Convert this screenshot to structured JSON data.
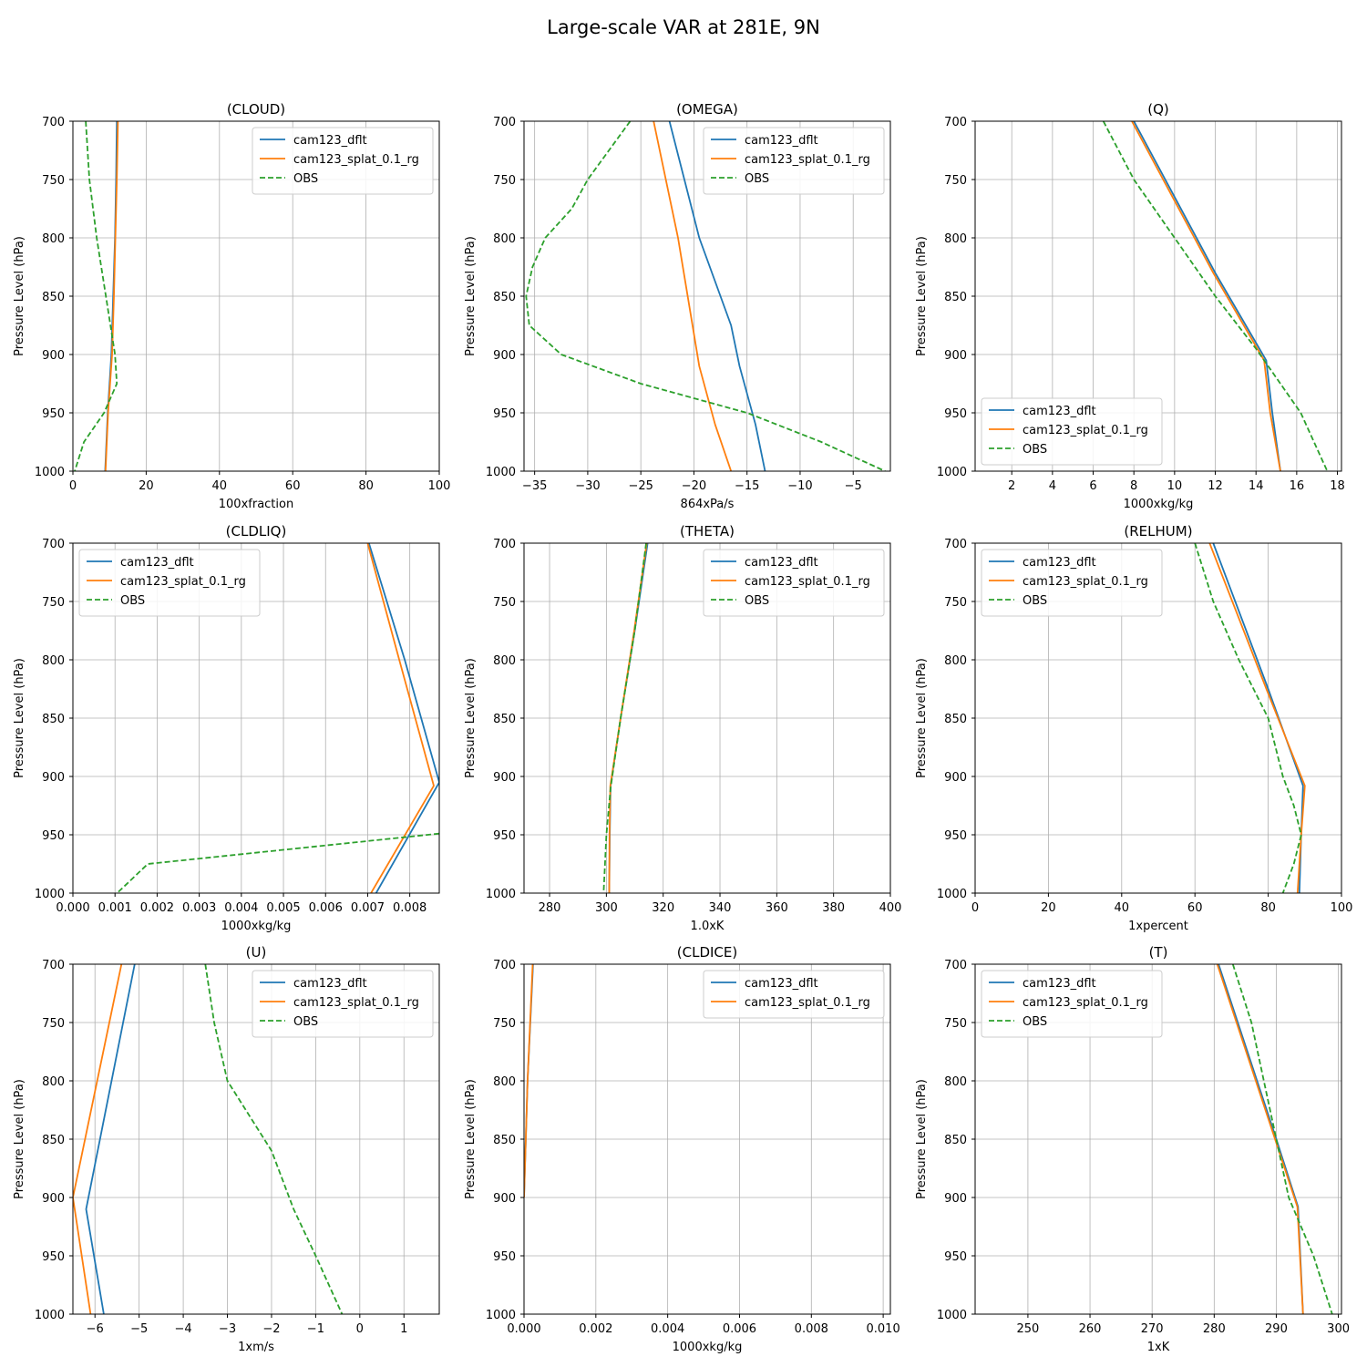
{
  "figure": {
    "title": "Large-scale VAR at 281E, 9N",
    "series_colors": {
      "cam123_dflt": "#1f77b4",
      "cam123_splat_0.1_rg": "#ff7f0e",
      "OBS": "#2ca02c"
    }
  },
  "chart_data": [
    {
      "type": "line",
      "title": "(CLOUD)",
      "xlabel": "100xfraction",
      "ylabel": "Pressure Level (hPa)",
      "xlim": [
        0,
        100
      ],
      "ylim": [
        1000,
        700
      ],
      "xticks": [
        0,
        20,
        40,
        60,
        80,
        100
      ],
      "yticks": [
        700,
        750,
        800,
        850,
        900,
        950,
        1000
      ],
      "legend_loc": "upper-right",
      "grid": true,
      "series": [
        {
          "name": "cam123_dflt",
          "style": "solid",
          "x": [
            12,
            11.8,
            11.5,
            11,
            10.5,
            9.5,
            8.8
          ],
          "y": [
            700,
            750,
            800,
            850,
            900,
            950,
            1000
          ]
        },
        {
          "name": "cam123_splat_0.1_rg",
          "style": "solid",
          "x": [
            12.3,
            12,
            11.6,
            11.2,
            10.7,
            9.6,
            8.9
          ],
          "y": [
            700,
            750,
            800,
            850,
            900,
            950,
            1000
          ]
        },
        {
          "name": "OBS",
          "style": "dashed",
          "x": [
            3.5,
            4.5,
            6.5,
            9,
            11.5,
            12,
            8.5,
            3,
            0.5
          ],
          "y": [
            700,
            750,
            800,
            850,
            900,
            925,
            950,
            975,
            1000
          ]
        }
      ]
    },
    {
      "type": "line",
      "title": "(OMEGA)",
      "xlabel": "864xPa/s",
      "ylabel": "Pressure Level (hPa)",
      "xlim": [
        -36,
        -1.5
      ],
      "ylim": [
        1000,
        700
      ],
      "xticks": [
        -35,
        -30,
        -25,
        -20,
        -15,
        -10,
        -5
      ],
      "yticks": [
        700,
        750,
        800,
        850,
        900,
        950,
        1000
      ],
      "legend_loc": "upper-right",
      "grid": true,
      "series": [
        {
          "name": "cam123_dflt",
          "style": "solid",
          "x": [
            -22.3,
            -19.5,
            -16.5,
            -15.7,
            -14.2,
            -13.3
          ],
          "y": [
            700,
            800,
            875,
            910,
            960,
            1000
          ]
        },
        {
          "name": "cam123_splat_0.1_rg",
          "style": "solid",
          "x": [
            -23.8,
            -21.5,
            -19.5,
            -18,
            -16.5
          ],
          "y": [
            700,
            800,
            910,
            960,
            1000
          ]
        },
        {
          "name": "OBS",
          "style": "dashed",
          "x": [
            -26,
            -28,
            -30,
            -31.5,
            -34,
            -35.2,
            -35.8,
            -35.5,
            -32.5,
            -25,
            -15,
            -8,
            -2
          ],
          "y": [
            700,
            725,
            750,
            775,
            800,
            825,
            850,
            875,
            900,
            925,
            950,
            975,
            1000
          ]
        }
      ]
    },
    {
      "type": "line",
      "title": "(Q)",
      "xlabel": "1000xkg/kg",
      "ylabel": "Pressure Level (hPa)",
      "xlim": [
        0.2,
        18.2
      ],
      "ylim": [
        1000,
        700
      ],
      "xticks": [
        2,
        4,
        6,
        8,
        10,
        12,
        14,
        16,
        18
      ],
      "yticks": [
        700,
        750,
        800,
        850,
        900,
        950,
        1000
      ],
      "legend_loc": "lower-left",
      "grid": true,
      "series": [
        {
          "name": "cam123_dflt",
          "style": "solid",
          "x": [
            8,
            10,
            12,
            14.5,
            14.8,
            15.2
          ],
          "y": [
            700,
            765,
            830,
            905,
            950,
            1000
          ]
        },
        {
          "name": "cam123_splat_0.1_rg",
          "style": "solid",
          "x": [
            7.9,
            9.9,
            11.9,
            14.4,
            14.7,
            15.2
          ],
          "y": [
            700,
            765,
            830,
            905,
            950,
            1000
          ]
        },
        {
          "name": "OBS",
          "style": "dashed",
          "x": [
            6.5,
            8,
            10,
            12,
            14,
            15.2,
            16.2,
            17.5
          ],
          "y": [
            700,
            750,
            800,
            850,
            895,
            925,
            950,
            1000
          ]
        }
      ]
    },
    {
      "type": "line",
      "title": "(CLDLIQ)",
      "xlabel": "1000xkg/kg",
      "ylabel": "Pressure Level (hPa)",
      "xlim": [
        0,
        0.0087
      ],
      "ylim": [
        1000,
        700
      ],
      "xticks": [
        0.0,
        0.001,
        0.002,
        0.003,
        0.004,
        0.005,
        0.006,
        0.007,
        0.008
      ],
      "yticks": [
        700,
        750,
        800,
        850,
        900,
        950,
        1000
      ],
      "legend_loc": "upper-left",
      "grid": true,
      "series": [
        {
          "name": "cam123_dflt",
          "style": "solid",
          "x": [
            0.00703,
            0.00788,
            0.0087,
            0.0072
          ],
          "y": [
            700,
            800,
            905,
            1000
          ]
        },
        {
          "name": "cam123_splat_0.1_rg",
          "style": "solid",
          "x": [
            0.007,
            0.00775,
            0.00857,
            0.00708
          ],
          "y": [
            700,
            800,
            908,
            1000
          ]
        },
        {
          "name": "OBS",
          "style": "dashed",
          "x": [
            0.0087,
            0.00178,
            0.00105
          ],
          "y": [
            949,
            975,
            1000
          ]
        }
      ]
    },
    {
      "type": "line",
      "title": "(THETA)",
      "xlabel": "1.0xK",
      "ylabel": "Pressure Level (hPa)",
      "xlim": [
        271,
        400
      ],
      "ylim": [
        1000,
        700
      ],
      "xticks": [
        280,
        300,
        320,
        340,
        360,
        380,
        400
      ],
      "yticks": [
        700,
        750,
        800,
        850,
        900,
        950,
        1000
      ],
      "legend_loc": "upper-right",
      "grid": true,
      "series": [
        {
          "name": "cam123_dflt",
          "style": "solid",
          "x": [
            314.5,
            310,
            305,
            301.5,
            301.2,
            301
          ],
          "y": [
            700,
            775,
            850,
            908,
            950,
            1000
          ]
        },
        {
          "name": "cam123_splat_0.1_rg",
          "style": "solid",
          "x": [
            314.2,
            309.8,
            305,
            301.4,
            301.1,
            301
          ],
          "y": [
            700,
            775,
            850,
            908,
            950,
            1000
          ]
        },
        {
          "name": "OBS",
          "style": "dashed",
          "x": [
            314,
            310,
            305,
            301.5,
            300,
            299
          ],
          "y": [
            700,
            775,
            850,
            910,
            950,
            1000
          ]
        }
      ]
    },
    {
      "type": "line",
      "title": "(RELHUM)",
      "xlabel": "1xpercent",
      "ylabel": "Pressure Level (hPa)",
      "xlim": [
        0,
        100
      ],
      "ylim": [
        1000,
        700
      ],
      "xticks": [
        0,
        20,
        40,
        60,
        80,
        100
      ],
      "yticks": [
        700,
        750,
        800,
        850,
        900,
        950,
        1000
      ],
      "legend_loc": "upper-left",
      "grid": true,
      "series": [
        {
          "name": "cam123_dflt",
          "style": "solid",
          "x": [
            65,
            80,
            89.5,
            89,
            88.5
          ],
          "y": [
            700,
            825,
            908,
            950,
            1000
          ]
        },
        {
          "name": "cam123_splat_0.1_rg",
          "style": "solid",
          "x": [
            64,
            79.5,
            90,
            89,
            88
          ],
          "y": [
            700,
            825,
            908,
            950,
            1000
          ]
        },
        {
          "name": "OBS",
          "style": "dashed",
          "x": [
            60,
            65,
            72,
            80,
            84,
            87,
            89,
            87,
            84
          ],
          "y": [
            700,
            750,
            800,
            850,
            900,
            925,
            950,
            975,
            1000
          ]
        }
      ]
    },
    {
      "type": "line",
      "title": "(U)",
      "xlabel": "1xm/s",
      "ylabel": "Pressure Level (hPa)",
      "xlim": [
        -6.5,
        1.8
      ],
      "ylim": [
        1000,
        700
      ],
      "xticks": [
        -6,
        -5,
        -4,
        -3,
        -2,
        -1,
        0,
        1
      ],
      "yticks": [
        700,
        750,
        800,
        850,
        900,
        950,
        1000
      ],
      "legend_loc": "upper-right",
      "grid": true,
      "series": [
        {
          "name": "cam123_dflt",
          "style": "solid",
          "x": [
            -5.1,
            -6.2,
            -5.8
          ],
          "y": [
            700,
            910,
            1000
          ]
        },
        {
          "name": "cam123_splat_0.1_rg",
          "style": "solid",
          "x": [
            -5.4,
            -6.5,
            -6.1
          ],
          "y": [
            700,
            900,
            1000
          ]
        },
        {
          "name": "OBS",
          "style": "dashed",
          "x": [
            -3.5,
            -3.3,
            -3,
            -2,
            -1.5,
            -1,
            -0.4
          ],
          "y": [
            700,
            750,
            800,
            860,
            910,
            950,
            1000
          ]
        }
      ]
    },
    {
      "type": "line",
      "title": "(CLDICE)",
      "xlabel": "1000xkg/kg",
      "ylabel": "Pressure Level (hPa)",
      "xlim": [
        0,
        0.0102
      ],
      "ylim": [
        1000,
        700
      ],
      "xticks": [
        0.0,
        0.002,
        0.004,
        0.006,
        0.008,
        0.01
      ],
      "yticks": [
        700,
        750,
        800,
        850,
        900,
        950,
        1000
      ],
      "legend_loc": "upper-right",
      "grid": true,
      "series": [
        {
          "name": "cam123_dflt",
          "style": "solid",
          "x": [
            0.00025,
            0.0001,
            0.0
          ],
          "y": [
            700,
            800,
            900
          ]
        },
        {
          "name": "cam123_splat_0.1_rg",
          "style": "solid",
          "x": [
            0.00024,
            0.0001,
            0.0
          ],
          "y": [
            700,
            800,
            900
          ]
        }
      ]
    },
    {
      "type": "line",
      "title": "(T)",
      "xlabel": "1xK",
      "ylabel": "Pressure Level (hPa)",
      "xlim": [
        241.5,
        300.5
      ],
      "ylim": [
        1000,
        700
      ],
      "xticks": [
        250,
        260,
        270,
        280,
        290,
        300
      ],
      "yticks": [
        700,
        750,
        800,
        850,
        900,
        950,
        1000
      ],
      "legend_loc": "upper-left",
      "grid": true,
      "series": [
        {
          "name": "cam123_dflt",
          "style": "solid",
          "x": [
            280.7,
            290,
            293.5,
            294.3
          ],
          "y": [
            700,
            850,
            908,
            1000
          ]
        },
        {
          "name": "cam123_splat_0.1_rg",
          "style": "solid",
          "x": [
            280.5,
            289.8,
            293.4,
            294.3
          ],
          "y": [
            700,
            850,
            908,
            1000
          ]
        },
        {
          "name": "OBS",
          "style": "dashed",
          "x": [
            283,
            286,
            288,
            290,
            292,
            294,
            296,
            299
          ],
          "y": [
            700,
            750,
            800,
            850,
            900,
            925,
            950,
            1000
          ]
        }
      ]
    }
  ]
}
